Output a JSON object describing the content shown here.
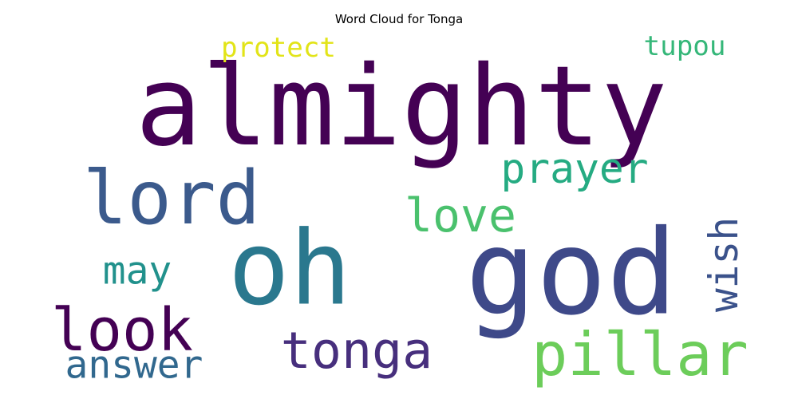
{
  "chart_data": {
    "type": "wordcloud",
    "title": "Word Cloud for Tonga",
    "colormap": "viridis",
    "background": "#ffffff",
    "words": [
      {
        "text": "almighty",
        "color": "#440154",
        "orientation": "horizontal"
      },
      {
        "text": "god",
        "color": "#3e4989",
        "orientation": "horizontal"
      },
      {
        "text": "oh",
        "color": "#2a788e",
        "orientation": "horizontal"
      },
      {
        "text": "lord",
        "color": "#3b5a8c",
        "orientation": "horizontal"
      },
      {
        "text": "pillar",
        "color": "#6ccd5a",
        "orientation": "horizontal"
      },
      {
        "text": "tonga",
        "color": "#472f7d",
        "orientation": "horizontal"
      },
      {
        "text": "look",
        "color": "#440154",
        "orientation": "horizontal"
      },
      {
        "text": "love",
        "color": "#4ac16d",
        "orientation": "horizontal"
      },
      {
        "text": "prayer",
        "color": "#25ab82",
        "orientation": "horizontal"
      },
      {
        "text": "answer",
        "color": "#31688e",
        "orientation": "horizontal"
      },
      {
        "text": "wish",
        "color": "#3b528b",
        "orientation": "vertical"
      },
      {
        "text": "may",
        "color": "#21918c",
        "orientation": "horizontal"
      },
      {
        "text": "protect",
        "color": "#e2e418",
        "orientation": "horizontal"
      },
      {
        "text": "tupou",
        "color": "#35b779",
        "orientation": "horizontal"
      }
    ]
  }
}
